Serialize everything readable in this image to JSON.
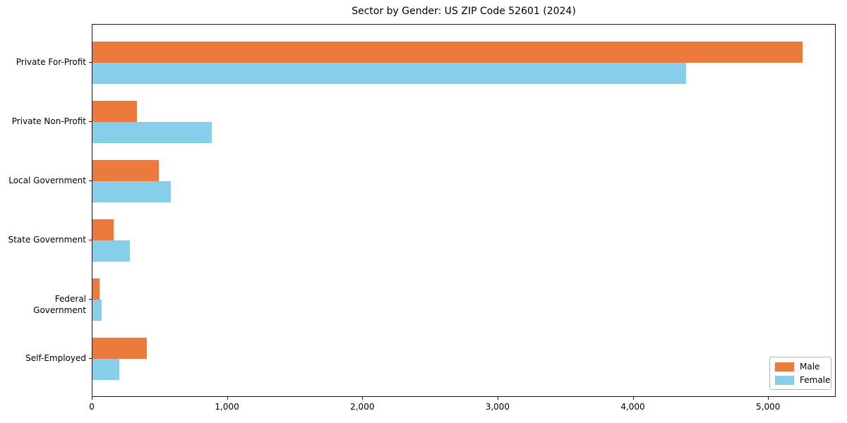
{
  "chart_data": {
    "type": "bar",
    "orientation": "horizontal",
    "title": "Sector by Gender: US ZIP Code 52601 (2024)",
    "categories": [
      "Private For-Profit",
      "Private Non-Profit",
      "Local Government",
      "State Government",
      "Federal Government",
      "Self-Employed"
    ],
    "series": [
      {
        "name": "Male",
        "color": "#EC7A3C",
        "values": [
          5250,
          330,
          490,
          155,
          50,
          400
        ]
      },
      {
        "name": "Female",
        "color": "#87CEEB",
        "values": [
          4390,
          880,
          580,
          275,
          65,
          200
        ]
      }
    ],
    "xlabel": "",
    "ylabel": "",
    "xlim": [
      0,
      5500
    ],
    "xticks": [
      0,
      1000,
      2000,
      3000,
      4000,
      5000
    ],
    "xtick_labels": [
      "0",
      "1,000",
      "2,000",
      "3,000",
      "4,000",
      "5,000"
    ],
    "grid": false,
    "legend": {
      "position": "lower-right",
      "entries": [
        {
          "label": "Male",
          "color": "#EC7A3C"
        },
        {
          "label": "Female",
          "color": "#87CEEB"
        }
      ]
    }
  }
}
